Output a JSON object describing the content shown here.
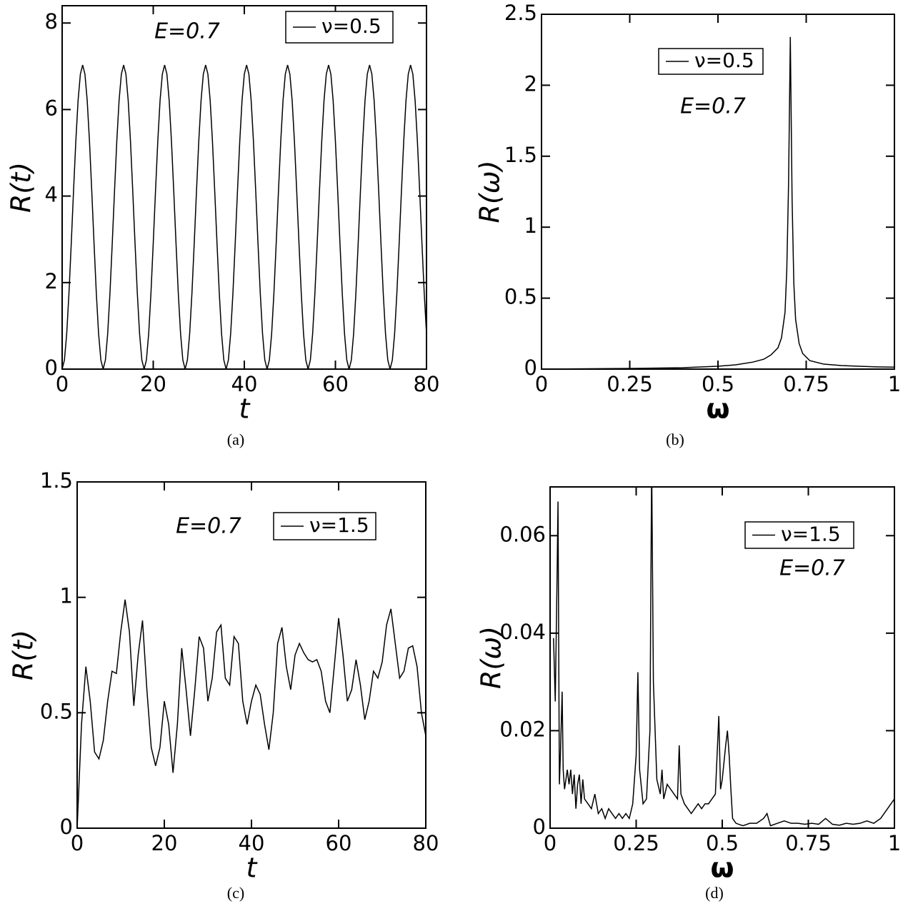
{
  "chart_data": [
    {
      "type": "line",
      "caption": "(a)",
      "annotation": "E=0.7",
      "xlabel": "t",
      "ylabel": "R(t)",
      "legend": "upper right",
      "xlim": [
        0,
        80
      ],
      "ylim": [
        0,
        8.4
      ],
      "xticks": [
        0,
        20,
        40,
        60,
        80
      ],
      "yticks": [
        0,
        2,
        4,
        6,
        8
      ],
      "x": [
        0,
        0.5,
        1,
        1.5,
        2,
        2.5,
        3,
        3.5,
        4,
        4.5,
        5,
        5.5,
        6,
        6.5,
        7,
        7.5,
        8,
        8.5,
        9,
        9.5,
        10,
        10.5,
        11,
        11.5,
        12,
        12.5,
        13,
        13.5,
        14,
        14.5,
        15,
        15.5,
        16,
        16.5,
        17,
        17.5,
        18,
        18.5,
        19,
        19.5,
        20,
        20.5,
        21,
        21.5,
        22,
        22.5,
        23,
        23.5,
        24,
        24.5,
        25,
        25.5,
        26,
        26.5,
        27,
        27.5,
        28,
        28.5,
        29,
        29.5,
        30,
        30.5,
        31,
        31.5,
        32,
        32.5,
        33,
        33.5,
        34,
        34.5,
        35,
        35.5,
        36,
        36.5,
        37,
        37.5,
        38,
        38.5,
        39,
        39.5,
        40,
        40.5,
        41,
        41.5,
        42,
        42.5,
        43,
        43.5,
        44,
        44.5,
        45,
        45.5,
        46,
        46.5,
        47,
        47.5,
        48,
        48.5,
        49,
        49.5,
        50,
        50.5,
        51,
        51.5,
        52,
        52.5,
        53,
        53.5,
        54,
        54.5,
        55,
        55.5,
        56,
        56.5,
        57,
        57.5,
        58,
        58.5,
        59,
        59.5,
        60,
        60.5,
        61,
        61.5,
        62,
        62.5,
        63,
        63.5,
        64,
        64.5,
        65,
        65.5,
        66,
        66.5,
        67,
        67.5,
        68,
        68.5,
        69,
        69.5,
        70,
        70.5,
        71,
        71.5,
        72,
        72.5,
        73,
        73.5,
        74,
        74.5,
        75,
        75.5,
        76,
        76.5,
        77,
        77.5,
        78,
        78.5,
        79,
        79.5,
        80
      ],
      "series": [
        {
          "name": "ν=0.5",
          "color": "#000000",
          "values": [
            0,
            0.21,
            0.82,
            1.76,
            2.91,
            4.12,
            5.27,
            6.21,
            6.82,
            7.03,
            6.82,
            6.21,
            5.27,
            4.12,
            2.91,
            1.76,
            0.82,
            0.21,
            0,
            0.21,
            0.82,
            1.76,
            2.91,
            4.12,
            5.27,
            6.21,
            6.82,
            7.03,
            6.82,
            6.21,
            5.27,
            4.12,
            2.91,
            1.76,
            0.82,
            0.21,
            0,
            0.21,
            0.82,
            1.76,
            2.91,
            4.12,
            5.27,
            6.21,
            6.82,
            7.03,
            6.82,
            6.21,
            5.27,
            4.12,
            2.91,
            1.76,
            0.82,
            0.21,
            0,
            0.21,
            0.82,
            1.76,
            2.91,
            4.12,
            5.27,
            6.21,
            6.82,
            7.03,
            6.82,
            6.21,
            5.27,
            4.12,
            2.91,
            1.76,
            0.82,
            0.21,
            0,
            0.21,
            0.82,
            1.76,
            2.91,
            4.12,
            5.27,
            6.21,
            6.82,
            7.03,
            6.82,
            6.21,
            5.27,
            4.12,
            2.91,
            1.76,
            0.82,
            0.21,
            0,
            0.21,
            0.82,
            1.76,
            2.91,
            4.12,
            5.27,
            6.21,
            6.82,
            7.03,
            6.82,
            6.21,
            5.27,
            4.12,
            2.91,
            1.76,
            0.82,
            0.21,
            0,
            0.21,
            0.82,
            1.76,
            2.91,
            4.12,
            5.27,
            6.21,
            6.82,
            7.03,
            6.82,
            6.21,
            5.27,
            4.12,
            2.91,
            1.76,
            0.82,
            0.21,
            0,
            0.21,
            0.82,
            1.76,
            2.91,
            4.12,
            5.27,
            6.21,
            6.82,
            7.03,
            6.82,
            6.21,
            5.27,
            4.12,
            2.91,
            1.76,
            0.82,
            0.21,
            0,
            0.21,
            0.82,
            1.76,
            2.91,
            4.12,
            5.27,
            6.21,
            6.82,
            7.03,
            6.82,
            6.21,
            5.27,
            4.12,
            2.91,
            1.76,
            0.82
          ]
        }
      ]
    },
    {
      "type": "line",
      "caption": "(b)",
      "annotation": "E=0.7",
      "xlabel": "ω",
      "ylabel": "R(ω)",
      "legend": "upper left",
      "xlim": [
        0,
        1
      ],
      "ylim": [
        0,
        2.5
      ],
      "xticks": [
        0,
        0.25,
        0.5,
        0.75,
        1
      ],
      "yticks": [
        0,
        0.5,
        1,
        1.5,
        2,
        2.5
      ],
      "x": [
        0,
        0.1,
        0.2,
        0.3,
        0.4,
        0.5,
        0.55,
        0.6,
        0.63,
        0.65,
        0.67,
        0.68,
        0.69,
        0.695,
        0.7,
        0.705,
        0.71,
        0.715,
        0.72,
        0.73,
        0.74,
        0.76,
        0.8,
        0.85,
        0.9,
        0.95,
        1
      ],
      "series": [
        {
          "name": "ν=0.5",
          "color": "#000000",
          "values": [
            0,
            0.002,
            0.004,
            0.006,
            0.01,
            0.02,
            0.03,
            0.05,
            0.07,
            0.1,
            0.15,
            0.22,
            0.4,
            0.7,
            1.3,
            2.34,
            1.2,
            0.6,
            0.35,
            0.18,
            0.11,
            0.06,
            0.035,
            0.025,
            0.02,
            0.016,
            0.014
          ]
        }
      ]
    },
    {
      "type": "line",
      "caption": "(c)",
      "annotation": "E=0.7",
      "xlabel": "t",
      "ylabel": "R(t)",
      "legend": "upper right",
      "xlim": [
        0,
        80
      ],
      "ylim": [
        0,
        1.5
      ],
      "xticks": [
        0,
        20,
        40,
        60,
        80
      ],
      "yticks": [
        0,
        0.5,
        1,
        1.5
      ],
      "x": [
        0,
        1,
        2,
        3,
        4,
        5,
        6,
        7,
        8,
        9,
        10,
        11,
        12,
        13,
        14,
        15,
        16,
        17,
        18,
        19,
        20,
        21,
        22,
        23,
        24,
        25,
        26,
        27,
        28,
        29,
        30,
        31,
        32,
        33,
        34,
        35,
        36,
        37,
        38,
        39,
        40,
        41,
        42,
        43,
        44,
        45,
        46,
        47,
        48,
        49,
        50,
        51,
        52,
        53,
        54,
        55,
        56,
        57,
        58,
        59,
        60,
        61,
        62,
        63,
        64,
        65,
        66,
        67,
        68,
        69,
        70,
        71,
        72,
        73,
        74,
        75,
        76,
        77,
        78,
        79,
        80
      ],
      "series": [
        {
          "name": "ν=1.5",
          "color": "#000000",
          "values": [
            0,
            0.45,
            0.7,
            0.55,
            0.33,
            0.3,
            0.38,
            0.55,
            0.68,
            0.67,
            0.85,
            0.99,
            0.85,
            0.53,
            0.75,
            0.9,
            0.6,
            0.35,
            0.27,
            0.35,
            0.55,
            0.45,
            0.24,
            0.45,
            0.78,
            0.6,
            0.4,
            0.6,
            0.83,
            0.78,
            0.55,
            0.65,
            0.85,
            0.88,
            0.65,
            0.62,
            0.83,
            0.8,
            0.55,
            0.45,
            0.55,
            0.62,
            0.58,
            0.45,
            0.34,
            0.5,
            0.8,
            0.87,
            0.7,
            0.6,
            0.75,
            0.8,
            0.76,
            0.73,
            0.72,
            0.73,
            0.68,
            0.55,
            0.5,
            0.7,
            0.91,
            0.75,
            0.55,
            0.6,
            0.73,
            0.62,
            0.47,
            0.55,
            0.68,
            0.65,
            0.72,
            0.88,
            0.95,
            0.8,
            0.65,
            0.68,
            0.78,
            0.79,
            0.7,
            0.5,
            0.4
          ]
        }
      ]
    },
    {
      "type": "line",
      "caption": "(d)",
      "annotation": "E=0.7",
      "xlabel": "ω",
      "ylabel": "R(ω)",
      "legend": "upper right",
      "xlim": [
        0,
        1
      ],
      "ylim": [
        0,
        0.07
      ],
      "xticks": [
        0,
        0.25,
        0.5,
        0.75,
        1
      ],
      "yticks": [
        0,
        0.02,
        0.04,
        0.06
      ],
      "x": [
        0.01,
        0.015,
        0.02,
        0.023,
        0.027,
        0.03,
        0.035,
        0.038,
        0.042,
        0.05,
        0.055,
        0.06,
        0.065,
        0.07,
        0.075,
        0.08,
        0.085,
        0.09,
        0.095,
        0.1,
        0.11,
        0.12,
        0.13,
        0.14,
        0.15,
        0.16,
        0.17,
        0.18,
        0.19,
        0.2,
        0.21,
        0.22,
        0.23,
        0.24,
        0.25,
        0.255,
        0.26,
        0.27,
        0.28,
        0.29,
        0.295,
        0.3,
        0.31,
        0.32,
        0.325,
        0.33,
        0.34,
        0.35,
        0.36,
        0.37,
        0.375,
        0.38,
        0.39,
        0.4,
        0.41,
        0.42,
        0.43,
        0.44,
        0.45,
        0.46,
        0.47,
        0.48,
        0.49,
        0.495,
        0.5,
        0.51,
        0.515,
        0.52,
        0.525,
        0.53,
        0.54,
        0.56,
        0.58,
        0.6,
        0.62,
        0.63,
        0.64,
        0.66,
        0.68,
        0.7,
        0.72,
        0.74,
        0.76,
        0.78,
        0.8,
        0.82,
        0.84,
        0.86,
        0.88,
        0.9,
        0.92,
        0.94,
        0.96,
        0.98,
        0.99,
        1
      ],
      "series": [
        {
          "name": "ν=1.5",
          "color": "#000000",
          "values": [
            0.039,
            0.026,
            0.05,
            0.067,
            0.009,
            0.015,
            0.028,
            0.012,
            0.008,
            0.012,
            0.009,
            0.012,
            0.007,
            0.011,
            0.004,
            0.009,
            0.011,
            0.005,
            0.01,
            0.006,
            0.005,
            0.004,
            0.007,
            0.003,
            0.004,
            0.002,
            0.004,
            0.003,
            0.002,
            0.003,
            0.002,
            0.003,
            0.002,
            0.005,
            0.015,
            0.032,
            0.012,
            0.005,
            0.006,
            0.02,
            0.075,
            0.03,
            0.01,
            0.007,
            0.012,
            0.006,
            0.009,
            0.008,
            0.007,
            0.006,
            0.017,
            0.007,
            0.005,
            0.004,
            0.003,
            0.004,
            0.005,
            0.004,
            0.005,
            0.005,
            0.006,
            0.007,
            0.023,
            0.008,
            0.01,
            0.017,
            0.02,
            0.015,
            0.008,
            0.002,
            0.001,
            0.0005,
            0.001,
            0.001,
            0.002,
            0.003,
            0.0005,
            0.001,
            0.0015,
            0.001,
            0.001,
            0.0008,
            0.001,
            0.0008,
            0.002,
            0.0008,
            0.0006,
            0.001,
            0.0008,
            0.001,
            0.0015,
            0.001,
            0.002,
            0.004,
            0.005,
            0.006
          ]
        }
      ]
    }
  ]
}
